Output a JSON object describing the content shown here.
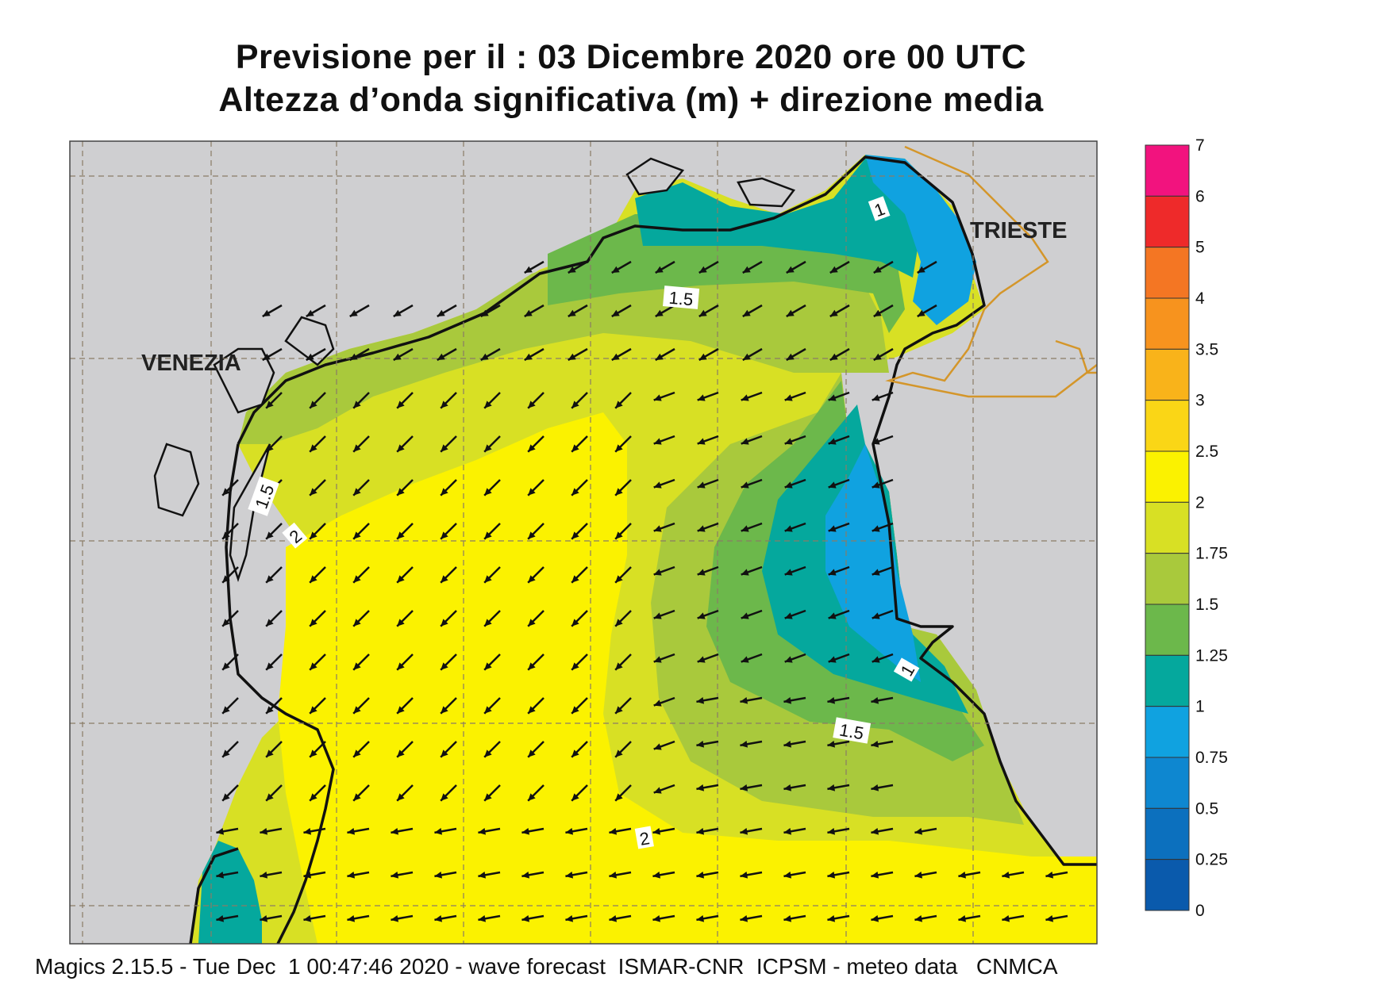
{
  "title_line1": "Previsione per il  :  03 Dicembre  2020   ore 00 UTC",
  "title_line2": "Altezza d’onda significativa (m) + direzione media",
  "footer": "Magics 2.15.5 - Tue Dec  1 00:47:46 2020 - wave forecast  ISMAR-CNR  ICPSM - meteo data   CNMCA",
  "places": {
    "venezia": "VENEZIA",
    "trieste": "TRIESTE"
  },
  "contour_labels": [
    "1",
    "1.5",
    "1.5",
    "2",
    "1",
    "1.5",
    "2"
  ],
  "legend": {
    "ticks": [
      "7",
      "6",
      "5",
      "4",
      "3.5",
      "3",
      "2.5",
      "2",
      "1.75",
      "1.5",
      "1.25",
      "1",
      "0.75",
      "0.5",
      "0.25",
      "0"
    ],
    "colors": [
      "#f2137e",
      "#ee2a2a",
      "#f47623",
      "#f7931e",
      "#f9b31a",
      "#fad616",
      "#fbf200",
      "#d8e024",
      "#a9c93c",
      "#6cb84b",
      "#05a89d",
      "#10a2e0",
      "#0e87d0",
      "#0c70be",
      "#0a5aac"
    ]
  },
  "colors": {
    "land": "#cfcfd1",
    "sea_yellow": "#fbf200",
    "sea_lime": "#d8e024",
    "sea_green": "#a9c93c",
    "sea_mid": "#6cb84b",
    "sea_teal": "#05a89d",
    "sea_blue": "#10a2e0"
  }
}
